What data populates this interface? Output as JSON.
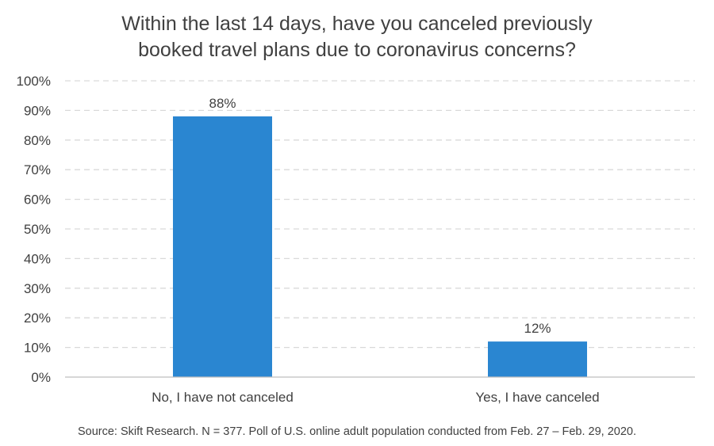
{
  "chart_data": {
    "type": "bar",
    "title_lines": [
      "Within the last 14 days, have you canceled previously",
      "booked travel plans due to coronavirus concerns?"
    ],
    "categories": [
      "No, I have not canceled",
      "Yes, I have canceled"
    ],
    "values": [
      88,
      12
    ],
    "data_labels": [
      "88%",
      "12%"
    ],
    "ylim": [
      0,
      100
    ],
    "y_ticks": [
      0,
      10,
      20,
      30,
      40,
      50,
      60,
      70,
      80,
      90,
      100
    ],
    "y_tick_labels": [
      "0%",
      "10%",
      "20%",
      "30%",
      "40%",
      "50%",
      "60%",
      "70%",
      "80%",
      "90%",
      "100%"
    ],
    "grid": true,
    "legend": false,
    "bar_color": "#2A86D1",
    "grid_color": "#D9D9D9",
    "axis_color": "#BFBFBF"
  },
  "source": "Source: Skift Research. N = 377. Poll of U.S. online adult population conducted from Feb. 27 – Feb. 29, 2020."
}
